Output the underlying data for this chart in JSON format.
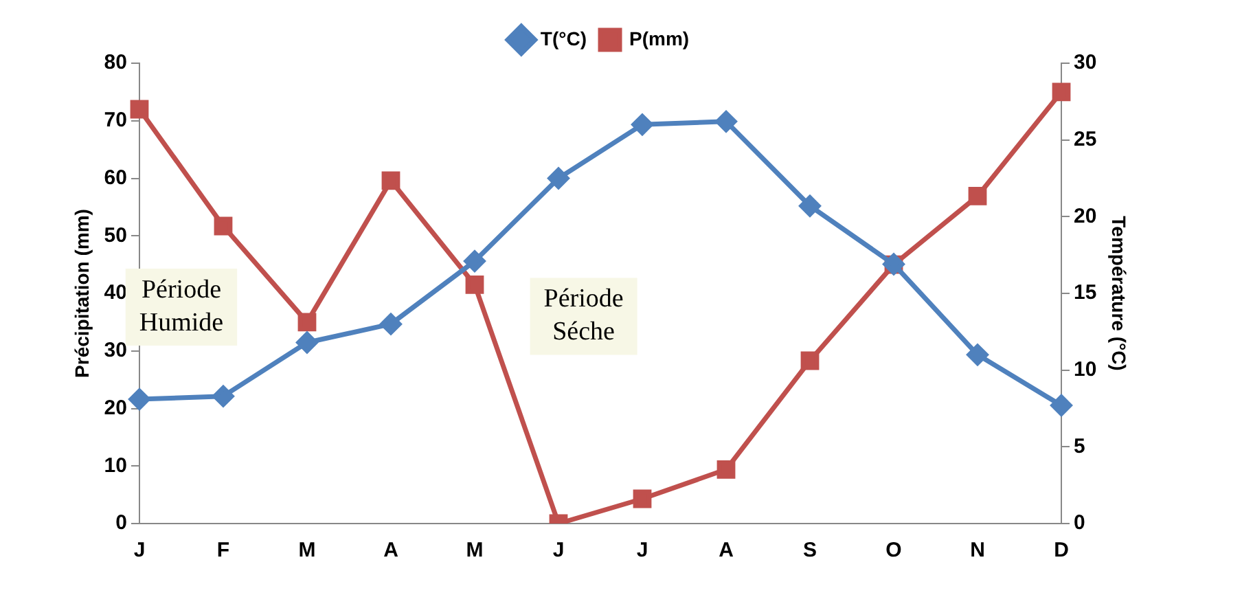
{
  "chart_data": {
    "type": "line",
    "categories": [
      "J",
      "F",
      "M",
      "A",
      "M",
      "J",
      "J",
      "A",
      "S",
      "O",
      "N",
      "D"
    ],
    "series": [
      {
        "name": "P(mm)",
        "color": "#c0504d",
        "marker": "square",
        "values": [
          72,
          51.7,
          35,
          59.6,
          41.5,
          0,
          4.3,
          9.4,
          28.3,
          45,
          56.9,
          75
        ]
      },
      {
        "name": "T(°C)",
        "color": "#4f81bd",
        "marker": "diamond",
        "axis": "y2",
        "values": [
          8.1,
          8.3,
          11.8,
          13,
          17.1,
          22.5,
          26,
          26.2,
          20.7,
          16.9,
          11,
          7.7
        ]
      }
    ],
    "ylabel": "Précipitation (mm)",
    "y2label": "Température (°C)",
    "ylim": [
      0,
      80
    ],
    "yticks": [
      0,
      10,
      20,
      30,
      40,
      50,
      60,
      70,
      80
    ],
    "y2lim": [
      0,
      30
    ],
    "y2ticks": [
      0,
      5,
      10,
      15,
      20,
      25,
      30
    ],
    "annotations": [
      "Période\nHumide",
      "Période\nSéche"
    ],
    "legend": "top",
    "grid": false,
    "line_style": "solid"
  }
}
